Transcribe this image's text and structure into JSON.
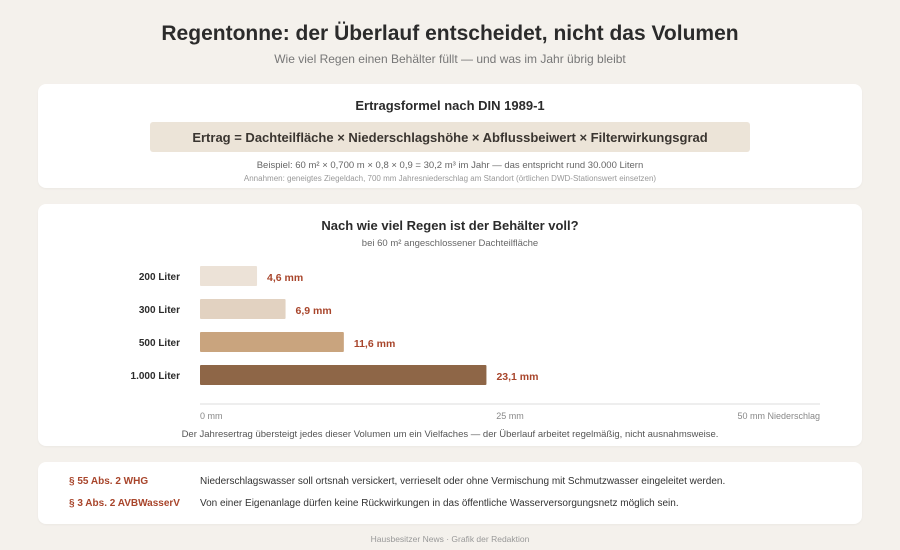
{
  "header": {
    "title": "Regentonne: der Überlauf entscheidet, nicht das Volumen",
    "subtitle": "Wie viel Regen einen Behälter füllt — und was im Jahr übrig bleibt"
  },
  "formula": {
    "heading": "Ertragsformel nach DIN 1989-1",
    "expression": "Ertrag = Dachteilfläche × Niederschlagshöhe × Abflussbeiwert × Filterwirkungsgrad",
    "example": "Beispiel: 60 m² × 0,700 m × 0,8 × 0,9 = 30,2 m³ im Jahr — das entspricht rund 30.000 Litern",
    "assumptions": "Annahmen: geneigtes Ziegeldach, 700 mm Jahresniederschlag am Standort (örtlichen DWD-Stationswert einsetzen)"
  },
  "chart_data": {
    "type": "bar",
    "orientation": "horizontal",
    "title": "Nach wie viel Regen ist der Behälter voll?",
    "subtitle": "bei 60 m² angeschlossener Dachteilfläche",
    "categories": [
      "200 Liter",
      "300 Liter",
      "500 Liter",
      "1.000 Liter"
    ],
    "values": [
      4.6,
      6.9,
      11.6,
      23.1
    ],
    "value_labels": [
      "4,6 mm",
      "6,9 mm",
      "11,6 mm",
      "23,1 mm"
    ],
    "bar_colors": [
      "#ece2d7",
      "#e2d2c1",
      "#c9a47e",
      "#8e6647"
    ],
    "label_color": "#a8452b",
    "xlim": [
      0,
      50
    ],
    "x_ticks": [
      {
        "value": 0,
        "label": "0 mm"
      },
      {
        "value": 25,
        "label": "25 mm"
      },
      {
        "value": 50,
        "label": "50 mm Niederschlag"
      }
    ],
    "grid": false
  },
  "chart_note": "Der Jahresertrag übersteigt jedes dieser Volumen um ein Vielfaches — der Überlauf arbeitet regelmäßig, nicht ausnahmsweise.",
  "law": [
    {
      "ref": "§ 55 Abs. 2 WHG",
      "text": "Niederschlagswasser soll ortsnah versickert, verrieselt oder ohne Vermischung mit Schmutzwasser eingeleitet werden."
    },
    {
      "ref": "§ 3 Abs. 2 AVBWasserV",
      "text": "Von einer Eigenanlage dürfen keine Rückwirkungen in das öffentliche Wasserversorgungsnetz möglich sein."
    }
  ],
  "footer": "Hausbesitzer News · Grafik der Redaktion"
}
